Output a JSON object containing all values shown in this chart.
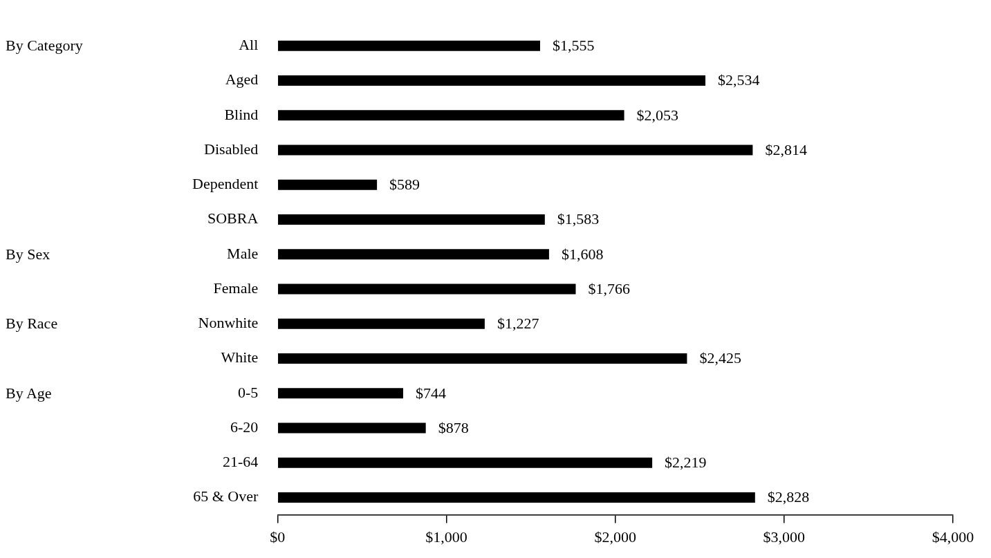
{
  "chart_data": {
    "type": "bar",
    "orientation": "horizontal",
    "categories": [
      "All",
      "Aged",
      "Blind",
      "Disabled",
      "Dependent",
      "SOBRA",
      "Male",
      "Female",
      "Nonwhite",
      "White",
      "0-5",
      "6-20",
      "21-64",
      "65 & Over"
    ],
    "values": [
      1555,
      2534,
      2053,
      2814,
      589,
      1583,
      1608,
      1766,
      1227,
      2425,
      744,
      878,
      2219,
      2828
    ],
    "value_labels": [
      "$1,555",
      "$2,534",
      "$2,053",
      "$2,814",
      "$589",
      "$1,583",
      "$1,608",
      "$1,766",
      "$1,227",
      "$2,425",
      "$744",
      "$878",
      "$2,219",
      "$2,828"
    ],
    "color": "#000000",
    "xlim": [
      0,
      4000
    ],
    "xticks": [
      {
        "value": 0,
        "label": "$0"
      },
      {
        "value": 1000,
        "label": "$1,000"
      },
      {
        "value": 2000,
        "label": "$2,000"
      },
      {
        "value": 3000,
        "label": "$3,000"
      },
      {
        "value": 4000,
        "label": "$4,000"
      }
    ],
    "grid": false,
    "legend": false,
    "annotations": [
      "By Category",
      "By Sex",
      "By Race",
      "By Age"
    ]
  }
}
